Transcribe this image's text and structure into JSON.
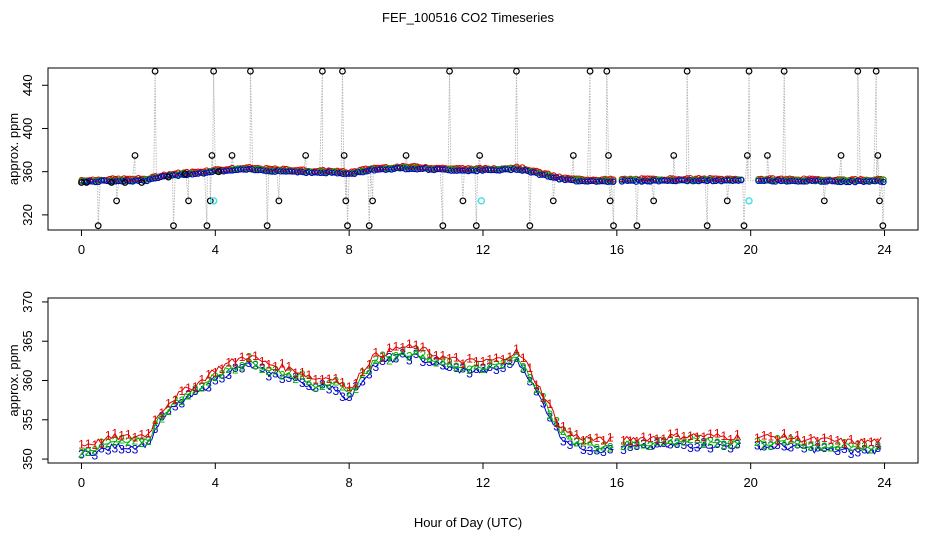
{
  "chart_data": {
    "title": "FEF_100516  CO2 Timeseries",
    "xlabel": "Hour of Day (UTC)",
    "colors": {
      "gray_line": "#b4b4b4",
      "level1": "#e00000",
      "level2": "#00b400",
      "level3": "#0000cc",
      "cyan": "#40e0e8",
      "black_marker": "#000000"
    },
    "panels": [
      {
        "type": "scatter",
        "ylabel": "approx. ppm",
        "xlim": [
          -1,
          25
        ],
        "ylim": [
          306,
          456
        ],
        "xticks": [
          0,
          4,
          8,
          12,
          16,
          20,
          24
        ],
        "yticks": [
          320,
          360,
          400,
          440
        ],
        "series": [
          {
            "marker": "circle",
            "color": "#000000",
            "description_values": "raw samples incl. spikes",
            "values": [
              [
                0.0,
                350
              ],
              [
                0.15,
                350
              ],
              [
                0.5,
                310
              ],
              [
                0.9,
                350
              ],
              [
                1.05,
                333
              ],
              [
                1.3,
                350
              ],
              [
                1.6,
                375
              ],
              [
                1.8,
                350
              ],
              [
                2.2,
                453
              ],
              [
                2.6,
                355
              ],
              [
                2.75,
                310
              ],
              [
                3.1,
                358
              ],
              [
                3.2,
                333
              ],
              [
                3.75,
                310
              ],
              [
                3.85,
                333
              ],
              [
                3.9,
                375
              ],
              [
                3.95,
                453
              ],
              [
                4.1,
                360
              ],
              [
                4.5,
                375
              ],
              [
                5.05,
                453
              ],
              [
                5.55,
                310
              ],
              [
                5.9,
                333
              ],
              [
                6.7,
                375
              ],
              [
                7.2,
                453
              ],
              [
                7.8,
                453
              ],
              [
                7.85,
                375
              ],
              [
                7.9,
                333
              ],
              [
                7.95,
                310
              ],
              [
                8.6,
                310
              ],
              [
                8.7,
                333
              ],
              [
                9.7,
                375
              ],
              [
                10.8,
                310
              ],
              [
                11.0,
                453
              ],
              [
                11.4,
                333
              ],
              [
                11.8,
                310
              ],
              [
                11.9,
                375
              ],
              [
                13.0,
                453
              ],
              [
                13.4,
                310
              ],
              [
                14.1,
                333
              ],
              [
                14.7,
                375
              ],
              [
                15.2,
                453
              ],
              [
                15.7,
                453
              ],
              [
                15.75,
                375
              ],
              [
                15.8,
                333
              ],
              [
                15.9,
                310
              ],
              [
                16.6,
                310
              ],
              [
                17.1,
                333
              ],
              [
                17.7,
                375
              ],
              [
                18.1,
                453
              ],
              [
                18.7,
                310
              ],
              [
                19.3,
                333
              ],
              [
                19.8,
                310
              ],
              [
                19.9,
                375
              ],
              [
                19.95,
                453
              ],
              [
                20.5,
                375
              ],
              [
                21.0,
                453
              ],
              [
                22.2,
                333
              ],
              [
                22.7,
                375
              ],
              [
                23.2,
                453
              ],
              [
                23.75,
                453
              ],
              [
                23.8,
                375
              ],
              [
                23.85,
                333
              ],
              [
                23.95,
                310
              ]
            ]
          },
          {
            "marker": "circle",
            "color": "#40e0e8",
            "values": [
              [
                3.95,
                333
              ],
              [
                11.95,
                333
              ],
              [
                19.95,
                333
              ]
            ]
          }
        ]
      },
      {
        "type": "line",
        "ylabel": "approx. ppm",
        "xlim": [
          -1,
          25
        ],
        "ylim": [
          349.5,
          370.5
        ],
        "xticks": [
          0,
          4,
          8,
          12,
          16,
          20,
          24
        ],
        "yticks": [
          350,
          355,
          360,
          365,
          370
        ],
        "levels": [
          {
            "label": "1",
            "color": "#e00000",
            "offset": 1.2
          },
          {
            "label": "2",
            "color": "#00b400",
            "offset": 0.5
          },
          {
            "label": "3",
            "color": "#0000cc",
            "offset": 0.0
          }
        ],
        "profile": [
          [
            0.0,
            350.6
          ],
          [
            0.5,
            351.0
          ],
          [
            1.0,
            351.6
          ],
          [
            1.5,
            351.6
          ],
          [
            2.0,
            352.0
          ],
          [
            2.3,
            354.5
          ],
          [
            2.6,
            356.0
          ],
          [
            3.0,
            357.3
          ],
          [
            3.5,
            358.5
          ],
          [
            4.0,
            360.2
          ],
          [
            4.5,
            361.2
          ],
          [
            5.0,
            362.0
          ],
          [
            5.5,
            361.0
          ],
          [
            6.0,
            360.5
          ],
          [
            6.5,
            360.0
          ],
          [
            7.0,
            359.0
          ],
          [
            7.5,
            359.3
          ],
          [
            8.0,
            357.6
          ],
          [
            8.3,
            359.5
          ],
          [
            8.7,
            361.8
          ],
          [
            9.0,
            362.2
          ],
          [
            9.5,
            363.0
          ],
          [
            10.0,
            363.0
          ],
          [
            10.5,
            362.2
          ],
          [
            11.0,
            361.5
          ],
          [
            11.5,
            361.2
          ],
          [
            12.0,
            361.2
          ],
          [
            12.5,
            361.5
          ],
          [
            13.0,
            362.5
          ],
          [
            13.3,
            361.0
          ],
          [
            13.6,
            358.5
          ],
          [
            14.0,
            355.5
          ],
          [
            14.3,
            353.0
          ],
          [
            14.7,
            351.8
          ],
          [
            15.0,
            351.5
          ],
          [
            15.5,
            351.2
          ],
          [
            15.9,
            351.2
          ],
          [
            16.1,
            351.4
          ],
          [
            17.0,
            351.5
          ],
          [
            18.0,
            351.8
          ],
          [
            19.0,
            351.7
          ],
          [
            19.8,
            351.6
          ],
          [
            20.2,
            351.6
          ],
          [
            21.0,
            351.6
          ],
          [
            22.0,
            351.2
          ],
          [
            23.0,
            351.0
          ],
          [
            23.5,
            351.0
          ],
          [
            23.9,
            351.2
          ]
        ],
        "gaps": [
          [
            15.9,
            16.1
          ],
          [
            19.8,
            20.2
          ]
        ]
      }
    ]
  }
}
